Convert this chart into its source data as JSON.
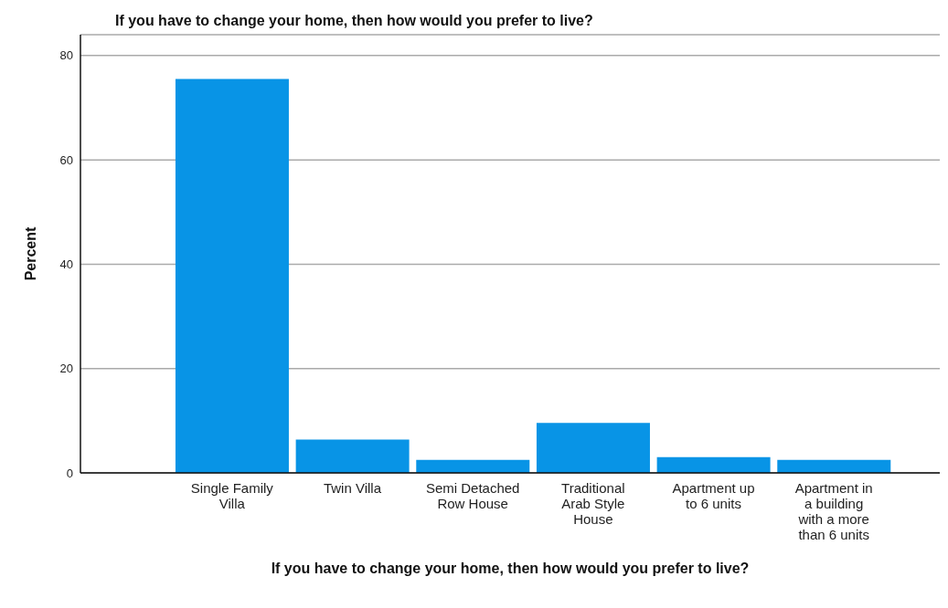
{
  "chart_data": {
    "type": "bar",
    "title": "If you have to change your home, then how would you prefer to live?",
    "xlabel": "If you have to change your home, then how would you prefer to live?",
    "ylabel": "Percent",
    "categories": [
      "Single Family Villa",
      "Twin Villa",
      "Semi Detached Row House",
      "Traditional Arab Style House",
      "Apartment up to 6 units",
      "Apartment in a building with a more than 6 units"
    ],
    "values": [
      75.5,
      6.4,
      2.5,
      9.6,
      3.0,
      2.5
    ],
    "color": "#0894e6",
    "ylim": [
      0,
      84
    ],
    "yticks": [
      0,
      20,
      40,
      60,
      80
    ],
    "grid": "y"
  }
}
